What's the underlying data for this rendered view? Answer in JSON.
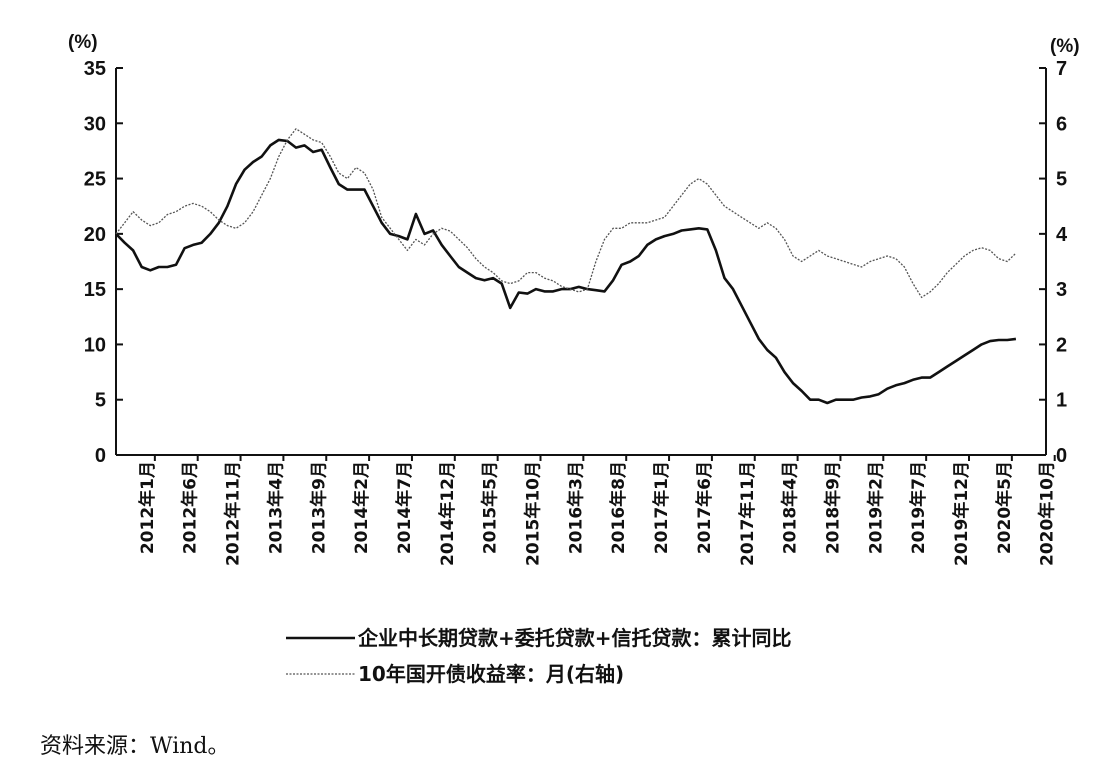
{
  "chart_data": {
    "type": "line",
    "left_unit": "(%)",
    "right_unit": "(%)",
    "left_ylim": [
      0,
      35
    ],
    "left_yticks": [
      0,
      5,
      10,
      15,
      20,
      25,
      30,
      35
    ],
    "right_ylim": [
      0,
      7
    ],
    "right_yticks": [
      0,
      1,
      2,
      3,
      4,
      5,
      6,
      7
    ],
    "x_start": "2012-01",
    "x_end": "2020-12",
    "x_tick_labels": [
      "2012年1月",
      "2012年6月",
      "2012年11月",
      "2013年4月",
      "2013年9月",
      "2014年2月",
      "2014年7月",
      "2014年12月",
      "2015年5月",
      "2015年10月",
      "2016年3月",
      "2016年8月",
      "2017年1月",
      "2017年6月",
      "2017年11月",
      "2018年4月",
      "2018年9月",
      "2019年2月",
      "2019年7月",
      "2019年12月",
      "2020年5月",
      "2020年10月"
    ],
    "series": [
      {
        "name": "企业中长期贷款+委托贷款+信托贷款：累计同比",
        "axis": "left",
        "style": "solid",
        "color": "#111111",
        "values": [
          20.0,
          19.2,
          18.5,
          17.0,
          16.7,
          17.0,
          17.0,
          17.2,
          18.7,
          19.0,
          19.2,
          20.0,
          21.0,
          22.5,
          24.5,
          25.8,
          26.5,
          27.0,
          28.0,
          28.5,
          28.4,
          27.8,
          28.0,
          27.4,
          27.6,
          26.0,
          24.5,
          24.0,
          24.0,
          24.0,
          22.5,
          21.0,
          20.0,
          19.8,
          19.5,
          21.8,
          20.0,
          20.3,
          19.0,
          18.0,
          17.0,
          16.5,
          16.0,
          15.8,
          16.0,
          15.5,
          13.3,
          14.7,
          14.6,
          15.0,
          14.8,
          14.8,
          15.0,
          15.0,
          15.2,
          15.0,
          14.9,
          14.8,
          15.8,
          17.2,
          17.5,
          18.0,
          19.0,
          19.5,
          19.8,
          20.0,
          20.3,
          20.4,
          20.5,
          20.4,
          18.5,
          16.0,
          15.0,
          13.5,
          12.0,
          10.5,
          9.5,
          8.8,
          7.5,
          6.5,
          5.8,
          5.0,
          5.0,
          4.7,
          5.0,
          5.0,
          5.0,
          5.2,
          5.3,
          5.5,
          6.0,
          6.3,
          6.5,
          6.8,
          7.0,
          7.0,
          7.5,
          8.0,
          8.5,
          9.0,
          9.5,
          10.0,
          10.3,
          10.4,
          10.4,
          10.5
        ]
      },
      {
        "name": "10年国开债收益率：月(右轴)",
        "axis": "right",
        "style": "dotted",
        "color": "#555555",
        "values": [
          4.0,
          4.2,
          4.4,
          4.25,
          4.15,
          4.2,
          4.35,
          4.4,
          4.5,
          4.55,
          4.5,
          4.4,
          4.25,
          4.15,
          4.1,
          4.2,
          4.4,
          4.7,
          5.0,
          5.4,
          5.7,
          5.9,
          5.8,
          5.7,
          5.65,
          5.4,
          5.1,
          5.0,
          5.2,
          5.1,
          4.8,
          4.3,
          4.1,
          3.9,
          3.7,
          3.9,
          3.8,
          4.0,
          4.1,
          4.05,
          3.9,
          3.75,
          3.55,
          3.4,
          3.3,
          3.15,
          3.1,
          3.15,
          3.3,
          3.3,
          3.2,
          3.15,
          3.05,
          3.0,
          2.95,
          3.0,
          3.5,
          3.9,
          4.1,
          4.1,
          4.2,
          4.2,
          4.2,
          4.25,
          4.3,
          4.5,
          4.7,
          4.9,
          5.0,
          4.9,
          4.7,
          4.5,
          4.4,
          4.3,
          4.2,
          4.1,
          4.2,
          4.1,
          3.9,
          3.6,
          3.5,
          3.6,
          3.7,
          3.6,
          3.55,
          3.5,
          3.45,
          3.4,
          3.5,
          3.55,
          3.6,
          3.55,
          3.4,
          3.1,
          2.85,
          2.95,
          3.1,
          3.3,
          3.45,
          3.6,
          3.7,
          3.75,
          3.7,
          3.55,
          3.5,
          3.65
        ]
      }
    ],
    "legend_placement": "bottom-center"
  },
  "source_text": "资料来源：Wind。"
}
